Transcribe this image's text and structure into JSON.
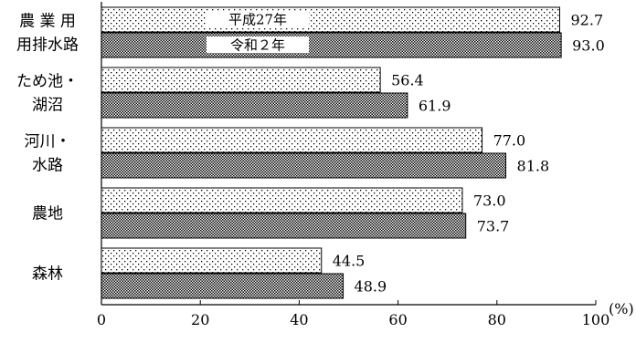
{
  "chart_data": {
    "type": "bar",
    "orientation": "horizontal",
    "categories": [
      [
        "農 業 用",
        "用排水路"
      ],
      [
        "ため池・",
        "湖沼"
      ],
      [
        "河川・",
        "水路"
      ],
      [
        "農地"
      ],
      [
        "森林"
      ]
    ],
    "series": [
      {
        "name": "平成27年",
        "values": [
          92.7,
          56.4,
          77.0,
          73.0,
          44.5
        ],
        "pattern": "dots"
      },
      {
        "name": "令和２年",
        "values": [
          93.0,
          61.9,
          81.8,
          73.7,
          48.9
        ],
        "pattern": "crosshatch"
      }
    ],
    "xlim": [
      0,
      100
    ],
    "xticks": [
      0,
      20,
      40,
      60,
      80,
      100
    ],
    "unit": "(%)",
    "legend_position": "inside-top-left",
    "grid": false,
    "colors": {
      "bar_stroke": "#000000",
      "background": "#ffffff"
    }
  }
}
